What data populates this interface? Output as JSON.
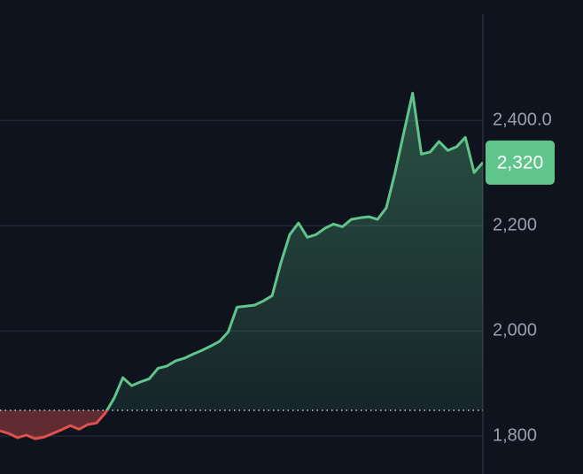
{
  "chart_data": {
    "type": "line",
    "values": [
      1810,
      1805,
      1797,
      1802,
      1795,
      1798,
      1805,
      1812,
      1820,
      1813,
      1822,
      1825,
      1844,
      1872,
      1911,
      1896,
      1903,
      1909,
      1929,
      1933,
      1943,
      1948,
      1956,
      1963,
      1971,
      1980,
      1998,
      2045,
      2047,
      2049,
      2057,
      2067,
      2130,
      2183,
      2205,
      2178,
      2183,
      2195,
      2203,
      2198,
      2212,
      2215,
      2217,
      2212,
      2234,
      2301,
      2377,
      2452,
      2336,
      2340,
      2360,
      2343,
      2350,
      2368,
      2301,
      2320
    ],
    "baseline": 1849,
    "up_color": "#5fc58a",
    "down_color": "#e0504f",
    "last_price": {
      "value": 2320,
      "label": "2,320"
    },
    "ylim": [
      1728,
      2629
    ],
    "yticks": [
      {
        "value": 1800,
        "label": "1,800"
      },
      {
        "value": 2000,
        "label": "2,000"
      },
      {
        "value": 2200,
        "label": "2,200"
      },
      {
        "value": 2400,
        "label": "2,400.0"
      }
    ],
    "grid": true
  }
}
